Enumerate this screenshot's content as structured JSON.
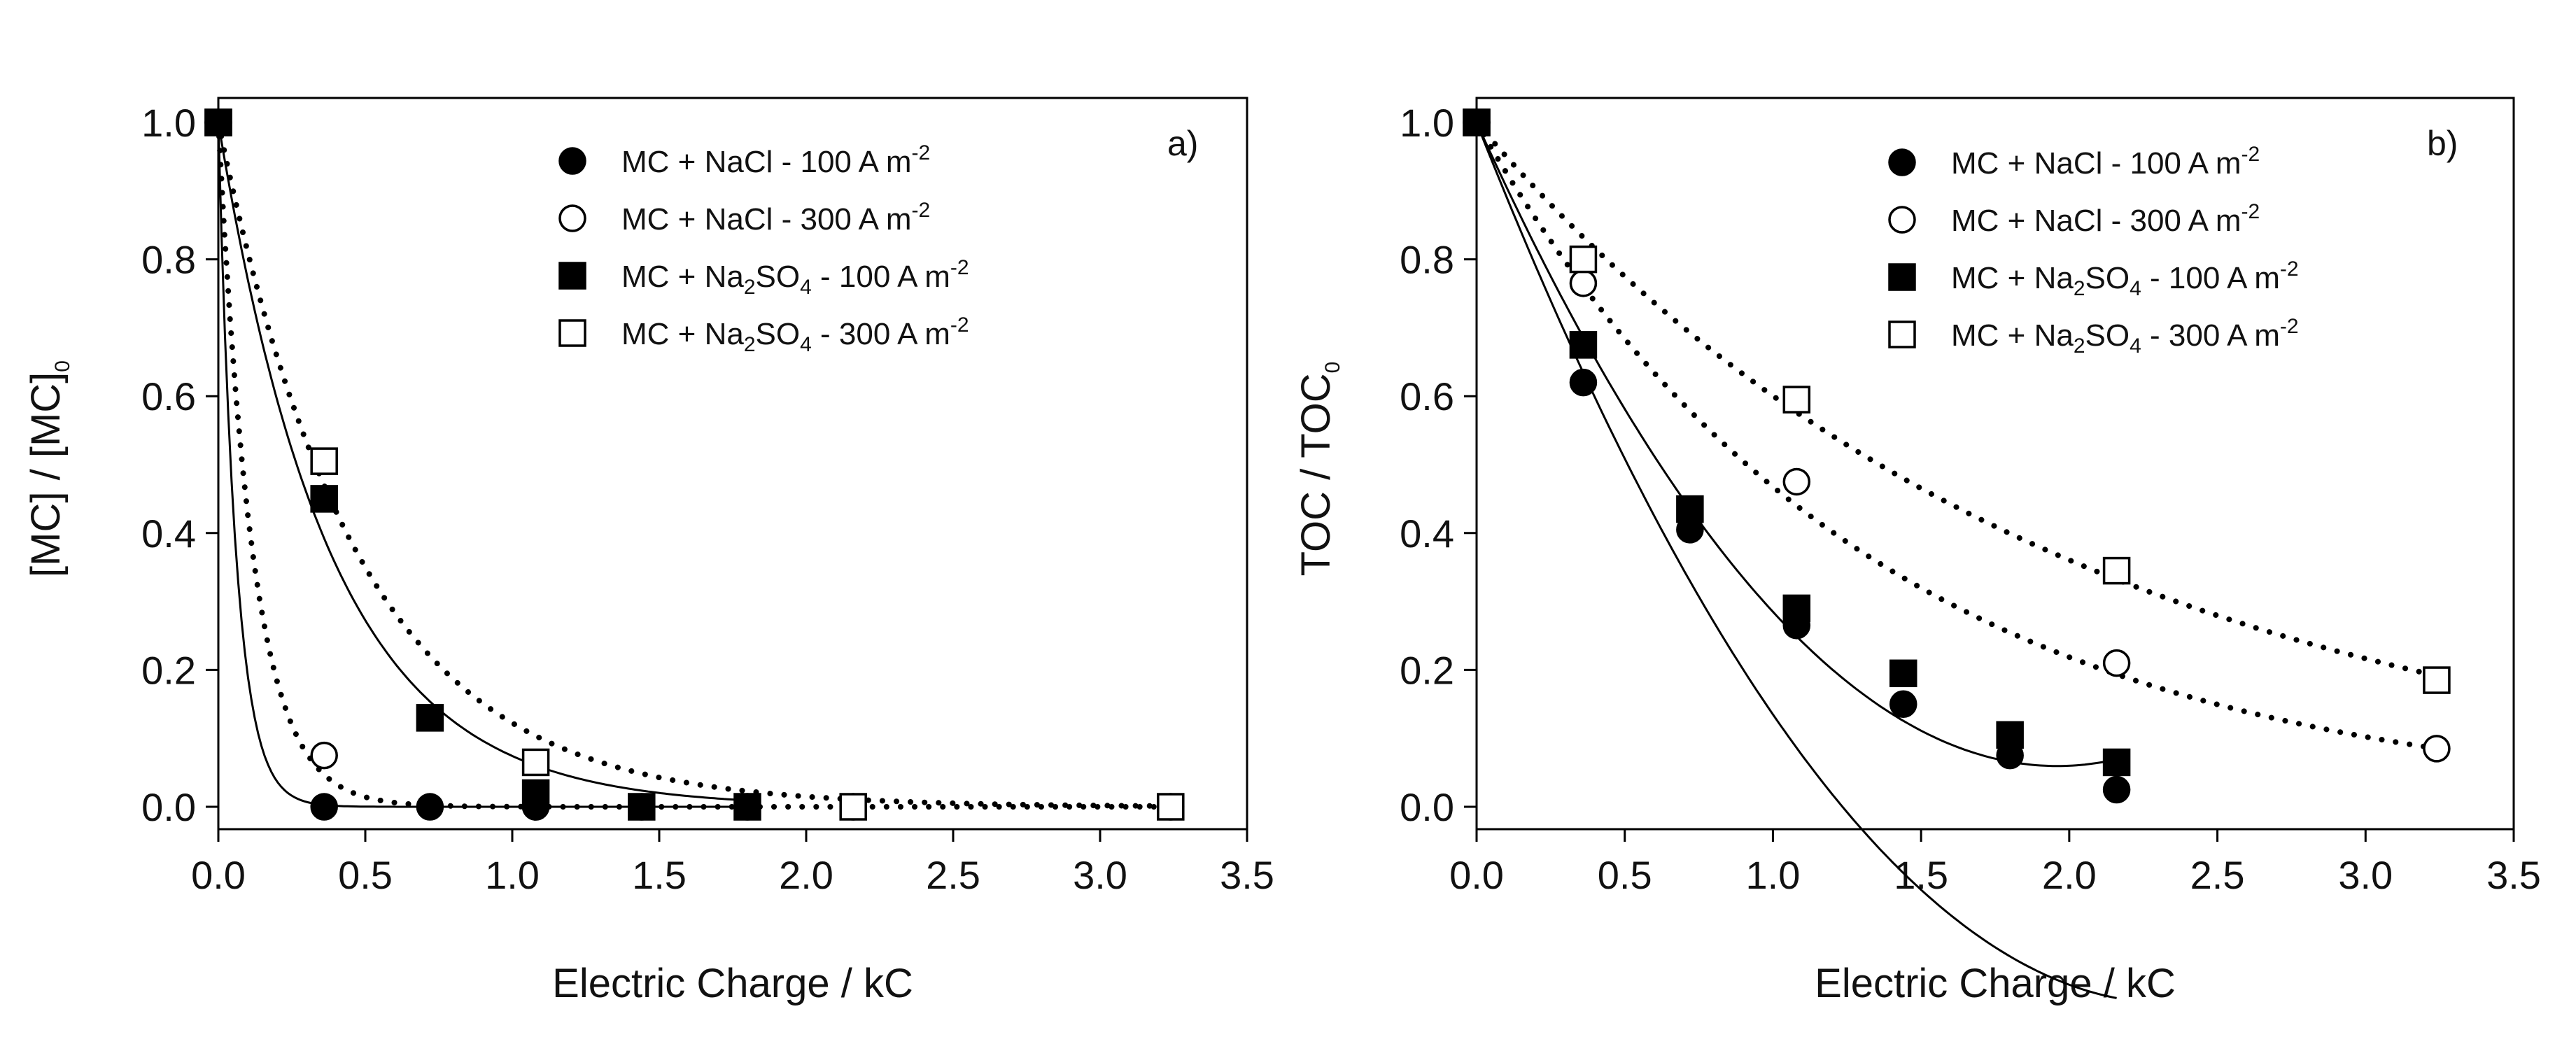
{
  "chart_data": [
    {
      "type": "scatter",
      "panel_label": "a)",
      "xlabel": "Electric Charge / kC",
      "ylabel": {
        "main": "[MC] / [MC]",
        "sub": "0"
      },
      "xlim": [
        0,
        3.5
      ],
      "ylim": [
        0,
        1.0
      ],
      "xticks": [
        "0.0",
        "0.5",
        "1.0",
        "1.5",
        "2.0",
        "2.5",
        "3.0",
        "3.5"
      ],
      "yticks": [
        "0.0",
        "0.2",
        "0.4",
        "0.6",
        "0.8",
        "1.0"
      ],
      "legend_position": "top-right",
      "series": [
        {
          "name": "MC + NaCl - 100 A m-2",
          "label": {
            "pre": "MC + NaCl - 100 A m",
            "sub": "",
            "mid": "",
            "sup": "-2"
          },
          "marker": "circle",
          "filled": true,
          "fit": "solid",
          "x": [
            0,
            0.36,
            0.72,
            1.08,
            1.44,
            1.8
          ],
          "y": [
            1.0,
            0.0,
            0.0,
            0.0,
            0.0,
            0.0
          ],
          "fit_k": 16.5
        },
        {
          "name": "MC + NaCl - 300 A m-2",
          "label": {
            "pre": "MC + NaCl - 300 A m",
            "sub": "",
            "mid": "",
            "sup": "-2"
          },
          "marker": "circle",
          "filled": false,
          "fit": "dotted",
          "x": [
            0,
            0.36,
            1.08,
            2.16,
            3.24
          ],
          "y": [
            1.0,
            0.075,
            0.0,
            0.0,
            0.0
          ],
          "fit_k": 8.5
        },
        {
          "name": "MC + Na2SO4 - 100 A m-2",
          "label": {
            "pre": "MC + Na",
            "sub": "2",
            "mid": "SO",
            "sub2": "4",
            "post": " - 100 A m",
            "sup": "-2"
          },
          "marker": "square",
          "filled": true,
          "fit": "solid",
          "x": [
            0,
            0.36,
            0.72,
            1.08,
            1.44,
            1.8
          ],
          "y": [
            1.0,
            0.45,
            0.13,
            0.02,
            0.0,
            0.0
          ],
          "fit_k": 2.6
        },
        {
          "name": "MC + Na2SO4 - 300 A m-2",
          "label": {
            "pre": "MC + Na",
            "sub": "2",
            "mid": "SO",
            "sub2": "4",
            "post": " - 300 A m",
            "sup": "-2"
          },
          "marker": "square",
          "filled": false,
          "fit": "dotted",
          "x": [
            0,
            0.36,
            1.08,
            2.16,
            3.24
          ],
          "y": [
            1.0,
            0.505,
            0.065,
            0.0,
            0.0
          ],
          "fit_k": 2.1
        }
      ]
    },
    {
      "type": "scatter",
      "panel_label": "b)",
      "xlabel": "Electric Charge / kC",
      "ylabel": {
        "main": "TOC / TOC",
        "sub": "0"
      },
      "xlim": [
        0,
        3.5
      ],
      "ylim": [
        0,
        1.0
      ],
      "xticks": [
        "0.0",
        "0.5",
        "1.0",
        "1.5",
        "2.0",
        "2.5",
        "3.0",
        "3.5"
      ],
      "yticks": [
        "0.0",
        "0.2",
        "0.4",
        "0.6",
        "0.8",
        "1.0"
      ],
      "legend_position": "top-right",
      "series": [
        {
          "name": "MC + NaCl - 100 A m-2",
          "label": {
            "pre": "MC + NaCl - 100 A m",
            "sub": "",
            "mid": "",
            "sup": "-2"
          },
          "marker": "circle",
          "filled": true,
          "fit": "solid",
          "x": [
            0,
            0.36,
            0.72,
            1.08,
            1.44,
            1.8,
            2.16
          ],
          "y": [
            1.0,
            0.62,
            0.405,
            0.265,
            0.15,
            0.075,
            0.025
          ],
          "fit_poly": [
            1.0,
            -1.1,
            0.235
          ]
        },
        {
          "name": "MC + NaCl - 300 A m-2",
          "label": {
            "pre": "MC + NaCl - 300 A m",
            "sub": "",
            "mid": "",
            "sup": "-2"
          },
          "marker": "circle",
          "filled": false,
          "fit": "dotted",
          "x": [
            0,
            0.36,
            1.08,
            2.16,
            3.24
          ],
          "y": [
            1.0,
            0.765,
            0.475,
            0.21,
            0.085
          ],
          "fit_k": 0.76
        },
        {
          "name": "MC + Na2SO4 - 100 A m-2",
          "label": {
            "pre": "MC + Na",
            "sub": "2",
            "mid": "SO",
            "sub2": "4",
            "post": " - 100 A m",
            "sup": "-2"
          },
          "marker": "square",
          "filled": true,
          "fit": "solid",
          "x": [
            0,
            0.36,
            0.72,
            1.08,
            1.44,
            1.8,
            2.16
          ],
          "y": [
            1.0,
            0.675,
            0.435,
            0.29,
            0.195,
            0.105,
            0.065
          ],
          "fit_poly": [
            1.0,
            -0.96,
            0.245
          ]
        },
        {
          "name": "MC + Na2SO4 - 300 A m-2",
          "label": {
            "pre": "MC + Na",
            "sub": "2",
            "mid": "SO",
            "sub2": "4",
            "post": " - 300 A m",
            "sup": "-2"
          },
          "marker": "square",
          "filled": false,
          "fit": "dotted",
          "x": [
            0,
            0.36,
            1.08,
            2.16,
            3.24
          ],
          "y": [
            1.0,
            0.8,
            0.595,
            0.345,
            0.185
          ],
          "fit_k": 0.51
        }
      ]
    }
  ]
}
